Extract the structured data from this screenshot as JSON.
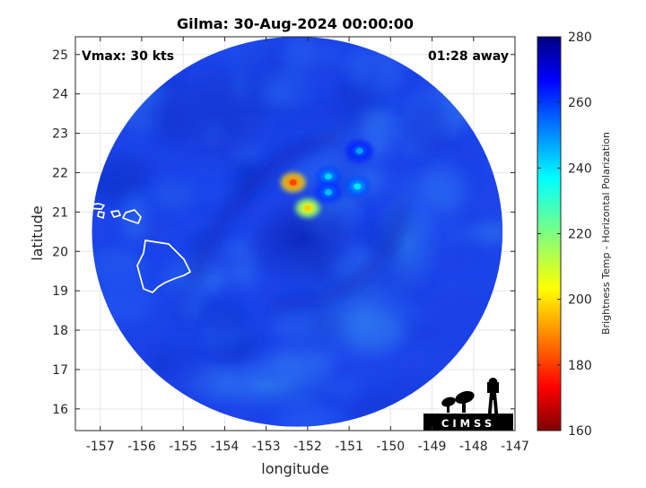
{
  "chart_data": {
    "type": "heatmap",
    "title": "Gilma: 30-Aug-2024 00:00:00",
    "xlabel": "longitude",
    "ylabel": "latitude",
    "xlim": [
      -157.6,
      -147
    ],
    "ylim": [
      15.45,
      25.45
    ],
    "x_ticks": [
      -157,
      -156,
      -155,
      -154,
      -153,
      -152,
      -151,
      -150,
      -149,
      -148,
      -147
    ],
    "y_ticks": [
      16,
      17,
      18,
      19,
      20,
      21,
      22,
      23,
      24,
      25
    ],
    "grid": true,
    "annotations": {
      "vmax": "Vmax: 30 kts",
      "time_away": "01:28 away"
    },
    "colorbar": {
      "label": "Brightness Temp - Horizontal Polarization",
      "range": [
        160,
        280
      ],
      "ticks": [
        160,
        180,
        200,
        220,
        240,
        260,
        280
      ],
      "colormap": "jet"
    },
    "swath": {
      "center": [
        -152.25,
        20.5
      ],
      "radius_lon": 4.95,
      "radius_lat": 4.95
    },
    "storm_center": [
      -152.1,
      20.3
    ],
    "warm_cells": [
      {
        "lon": -152.35,
        "lat": 21.75,
        "temp": 183
      },
      {
        "lon": -152.0,
        "lat": 21.1,
        "temp": 200
      },
      {
        "lon": -150.8,
        "lat": 21.65,
        "temp": 238
      },
      {
        "lon": -151.5,
        "lat": 21.9,
        "temp": 240
      },
      {
        "lon": -151.5,
        "lat": 21.5,
        "temp": 243
      },
      {
        "lon": -150.75,
        "lat": 22.55,
        "temp": 246
      }
    ],
    "logo_text": "CIMSS"
  },
  "colors": {
    "background": "#ffffff",
    "axis": "#262626",
    "grid": "#e6e6e6",
    "coastline": "#ffffff",
    "base_swath": "#1c44ea"
  }
}
